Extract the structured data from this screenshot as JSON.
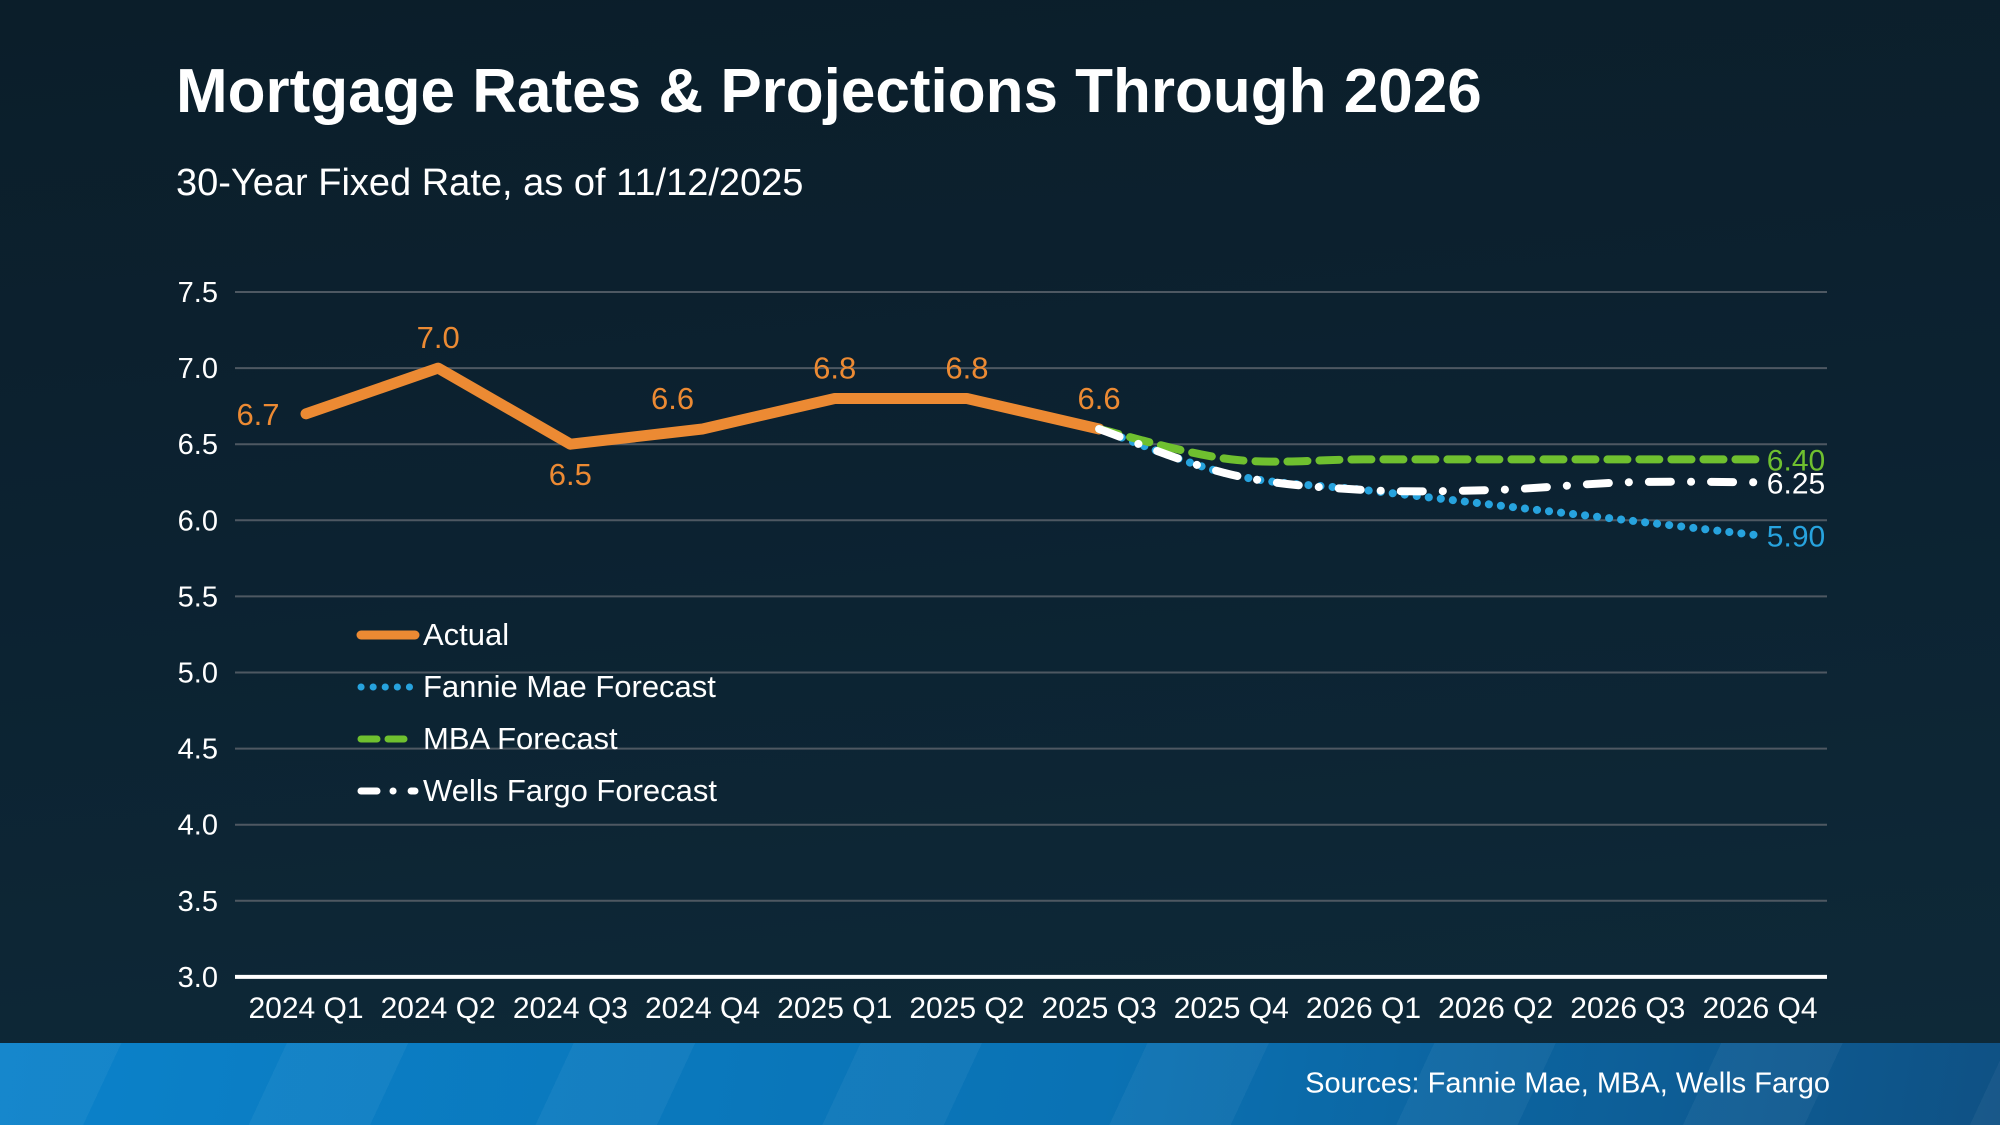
{
  "slide": {
    "title": "Mortgage Rates & Projections Through 2026",
    "subtitle": "30-Year Fixed Rate, as of 11/12/2025",
    "sources": "Sources: Fannie Mae, MBA, Wells Fargo"
  },
  "colors": {
    "background_top": "#0b1e2a",
    "background_mid": "#0c2231",
    "background_bottom": "#0e2a39",
    "text": "#ffffff",
    "gridline": "#4e5862",
    "axis_line": "#ffffff",
    "actual": "#EC8A33",
    "fannie_mae": "#27A3DE",
    "mba": "#6FC02F",
    "wells_fargo": "#FFFFFF",
    "footer_left": "#0b82ca",
    "footer_mid": "#0a72b4",
    "footer_right": "#0f5184"
  },
  "chart_data": {
    "type": "line",
    "title": "Mortgage Rates & Projections Through 2026",
    "subtitle": "30-Year Fixed Rate, as of 11/12/2025",
    "categories": [
      "2024 Q1",
      "2024 Q2",
      "2024 Q3",
      "2024 Q4",
      "2025 Q1",
      "2025 Q2",
      "2025 Q3",
      "2025 Q4",
      "2026 Q1",
      "2026 Q2",
      "2026 Q3",
      "2026 Q4"
    ],
    "ylim": [
      3.0,
      7.5
    ],
    "y_ticks": [
      "7.5",
      "7.0",
      "6.5",
      "6.0",
      "5.5",
      "5.0",
      "4.5",
      "4.0",
      "3.5",
      "3.0"
    ],
    "grid": "horizontal",
    "legend_position": "inside-left",
    "series": [
      {
        "name": "Actual",
        "style": "solid",
        "color_key": "actual",
        "values": [
          6.7,
          7.0,
          6.5,
          6.6,
          6.8,
          6.8,
          6.6,
          null,
          null,
          null,
          null,
          null
        ]
      },
      {
        "name": "Fannie Mae Forecast",
        "style": "dotted",
        "color_key": "fannie_mae",
        "values": [
          null,
          null,
          null,
          null,
          null,
          null,
          6.6,
          6.3,
          6.2,
          6.1,
          6.0,
          5.9
        ]
      },
      {
        "name": "MBA Forecast",
        "style": "dashed",
        "color_key": "mba",
        "values": [
          null,
          null,
          null,
          null,
          null,
          null,
          6.6,
          6.4,
          6.4,
          6.4,
          6.4,
          6.4
        ]
      },
      {
        "name": "Wells Fargo Forecast",
        "style": "dashdot",
        "color_key": "wells_fargo",
        "values": [
          null,
          null,
          null,
          null,
          null,
          null,
          6.6,
          6.3,
          6.2,
          6.2,
          6.25,
          6.25
        ]
      }
    ],
    "point_labels": [
      {
        "text": "6.7",
        "series": "Actual",
        "ci": 0,
        "value": 6.7,
        "placement": "left"
      },
      {
        "text": "7.0",
        "series": "Actual",
        "ci": 1,
        "value": 7.0,
        "placement": "above"
      },
      {
        "text": "6.5",
        "series": "Actual",
        "ci": 2,
        "value": 6.5,
        "placement": "below"
      },
      {
        "text": "6.6",
        "series": "Actual",
        "ci": 3,
        "value": 6.6,
        "placement": "above",
        "dx": -30
      },
      {
        "text": "6.8",
        "series": "Actual",
        "ci": 4,
        "value": 6.8,
        "placement": "above"
      },
      {
        "text": "6.8",
        "series": "Actual",
        "ci": 5,
        "value": 6.8,
        "placement": "above"
      },
      {
        "text": "6.6",
        "series": "Actual",
        "ci": 6,
        "value": 6.6,
        "placement": "above"
      }
    ],
    "end_labels": [
      {
        "text": "6.40",
        "series": "MBA Forecast",
        "value": 6.4,
        "color_key": "mba"
      },
      {
        "text": "6.25",
        "series": "Wells Fargo Forecast",
        "value": 6.25,
        "color_key": "wells_fargo"
      },
      {
        "text": "5.90",
        "series": "Fannie Mae Forecast",
        "value": 5.9,
        "color_key": "fannie_mae"
      }
    ]
  }
}
